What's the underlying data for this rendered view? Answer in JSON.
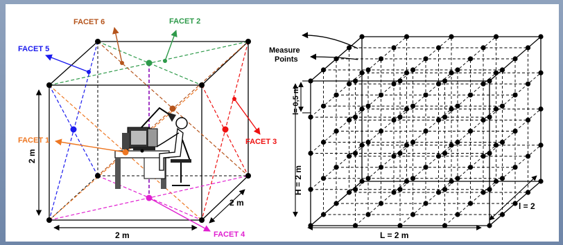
{
  "left_diagram": {
    "facets": [
      {
        "label": "FACET 6",
        "color": "#b5541c"
      },
      {
        "label": "FACET 2",
        "color": "#2e9a4a"
      },
      {
        "label": "FACET 5",
        "color": "#1a1aee"
      },
      {
        "label": "FACET 1",
        "color": "#ee7722"
      },
      {
        "label": "FACET 3",
        "color": "#ee1111"
      },
      {
        "label": "FACET 4",
        "color": "#e01fd0"
      }
    ],
    "dim_height": "2 m",
    "dim_width": "2 m",
    "dim_depth": "2 m"
  },
  "right_diagram": {
    "measure_label_line1": "Measure",
    "measure_label_line2": "Points",
    "spacing_label": "l= 0,5 m",
    "height_label": "H = 2 m",
    "length_label": "L = 2 m",
    "depth_label": "l = 2"
  }
}
